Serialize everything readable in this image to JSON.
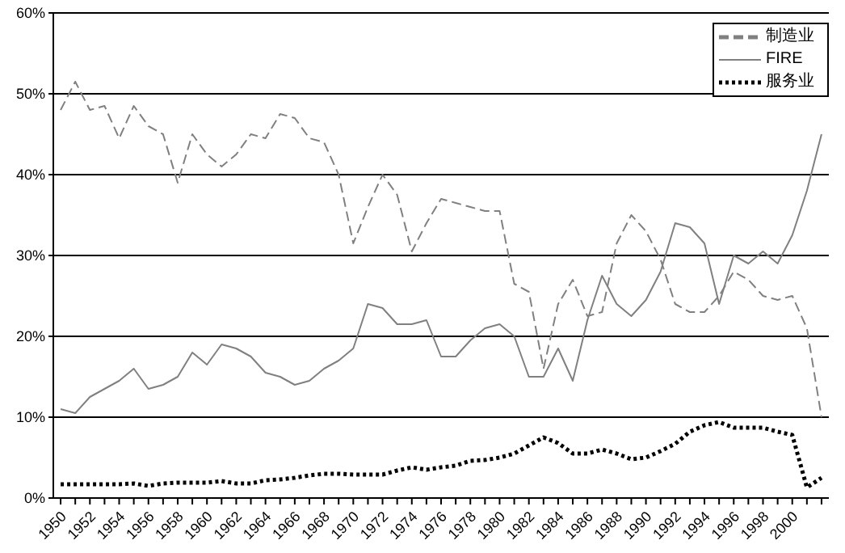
{
  "chart_data": {
    "type": "line",
    "categories": [
      "1950",
      null,
      "1952",
      null,
      "1954",
      null,
      "1956",
      null,
      "1958",
      null,
      "1960",
      null,
      "1962",
      null,
      "1964",
      null,
      "1966",
      null,
      "1968",
      null,
      "1970",
      null,
      "1972",
      null,
      "1974",
      null,
      "1976",
      null,
      "1978",
      null,
      "1980",
      null,
      "1982",
      null,
      "1984",
      null,
      "1986",
      null,
      "1988",
      null,
      "1990",
      null,
      "1992",
      null,
      "1994",
      null,
      "1996",
      null,
      "1998",
      null,
      "2000",
      null,
      null
    ],
    "series": [
      {
        "name": "制造业",
        "color": "#808080",
        "line_style": "dashed",
        "values": [
          48,
          51.5,
          48,
          48.5,
          44.5,
          48.5,
          46,
          45,
          39,
          45,
          42.5,
          41,
          42.5,
          45,
          44.5,
          47.5,
          47,
          44.5,
          44,
          40,
          31.5,
          36,
          40,
          37.5,
          30.5,
          34,
          37,
          36.5,
          36,
          35.5,
          35.5,
          26.5,
          25.5,
          16,
          24,
          27,
          22.5,
          23,
          31.5,
          35,
          33,
          29.5,
          24,
          23,
          23,
          25,
          28,
          27,
          25,
          24.5,
          25,
          21,
          10
        ]
      },
      {
        "name": "FIRE",
        "color": "#808080",
        "line_style": "solid",
        "values": [
          11,
          10.5,
          12.5,
          13.5,
          14.5,
          16,
          13.5,
          14,
          15,
          18,
          16.5,
          19,
          18.5,
          17.5,
          15.5,
          15,
          14,
          14.5,
          16,
          17,
          18.5,
          24,
          23.5,
          21.5,
          21.5,
          22,
          17.5,
          17.5,
          19.5,
          21,
          21.5,
          20,
          15,
          15,
          18.5,
          14.5,
          22,
          27.5,
          24,
          22.5,
          24.5,
          28,
          34,
          33.5,
          31.5,
          24,
          30,
          29,
          30.5,
          29,
          32.5,
          38,
          45
        ]
      },
      {
        "name": "服务业",
        "color": "#000000",
        "line_style": "dotted",
        "values": [
          1.7,
          1.7,
          1.7,
          1.7,
          1.7,
          1.8,
          1.5,
          1.8,
          1.9,
          1.9,
          1.9,
          2.1,
          1.8,
          1.8,
          2.2,
          2.3,
          2.5,
          2.8,
          3,
          3,
          2.9,
          2.9,
          2.9,
          3.4,
          3.8,
          3.5,
          3.8,
          4,
          4.6,
          4.7,
          5,
          5.5,
          6.5,
          7.5,
          6.8,
          5.5,
          5.5,
          6,
          5.5,
          4.8,
          5,
          5.8,
          6.7,
          8.2,
          9,
          9.4,
          8.7,
          8.7,
          8.7,
          8.2,
          7.8,
          1.3,
          2.5
        ]
      }
    ],
    "ylim": [
      0,
      60
    ],
    "yticks": [
      {
        "value": 0,
        "label": "0%"
      },
      {
        "value": 10,
        "label": "10%"
      },
      {
        "value": 20,
        "label": "20%"
      },
      {
        "value": 30,
        "label": "30%"
      },
      {
        "value": 40,
        "label": "40%"
      },
      {
        "value": 50,
        "label": "50%"
      },
      {
        "value": 60,
        "label": "60%"
      }
    ],
    "grid": "y",
    "legend": "top right",
    "marker": "none"
  }
}
